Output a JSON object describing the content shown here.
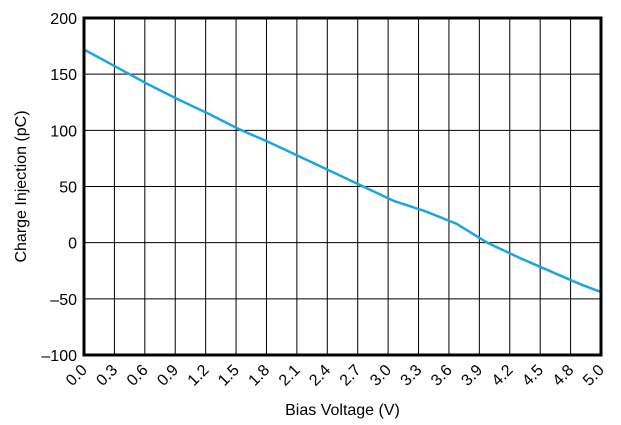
{
  "chart_data": {
    "type": "line",
    "xlabel": "Bias Voltage (V)",
    "ylabel": "Charge Injection (pC)",
    "x_ticks": [
      "0.0",
      "0.3",
      "0.6",
      "0.9",
      "1.2",
      "1.5",
      "1.8",
      "2.1",
      "2.4",
      "2.7",
      "3.0",
      "3.3",
      "3.6",
      "3.9",
      "4.2",
      "4.5",
      "4.8",
      "5.0"
    ],
    "y_ticks": [
      "200",
      "150",
      "100",
      "50",
      "0",
      "–50",
      "–100"
    ],
    "xlim": [
      0,
      5.0
    ],
    "ylim": [
      -100,
      200
    ],
    "grid": true,
    "series": [
      {
        "color": "#1aa7e0",
        "x": [
          0.0,
          0.3,
          0.6,
          0.9,
          1.2,
          1.5,
          1.8,
          2.1,
          2.4,
          2.7,
          3.0,
          3.3,
          3.6,
          3.9,
          4.2,
          4.5,
          4.8,
          5.0
        ],
        "y": [
          172,
          157,
          142,
          128,
          115,
          101,
          89,
          76,
          63,
          50,
          37,
          28,
          17,
          0,
          -13,
          -25,
          -37,
          -44
        ]
      }
    ]
  }
}
